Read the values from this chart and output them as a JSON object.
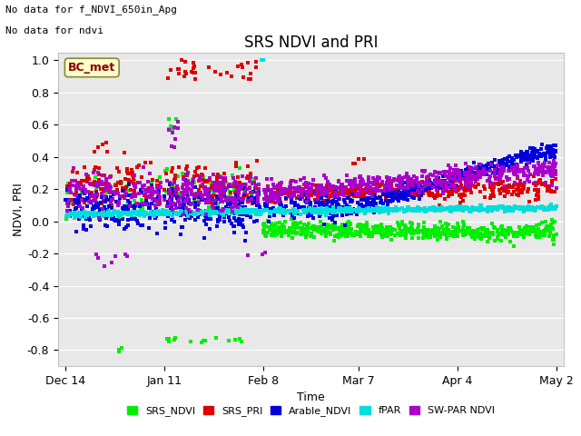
{
  "title": "SRS NDVI and PRI",
  "xlabel": "Time",
  "ylabel": "NDVI, PRI",
  "note_line1": "No data for f_NDVI_650in_Apg",
  "note_line2": "No data for ndvi",
  "bc_met_label": "BC_met",
  "legend_entries": [
    "SRS_NDVI",
    "SRS_PRI",
    "Arable_NDVI",
    "fPAR",
    "SW-PAR NDVI"
  ],
  "legend_colors": [
    "#00ee00",
    "#dd0000",
    "#0000dd",
    "#00dddd",
    "#aa00cc"
  ],
  "xtick_labels": [
    "Dec 14",
    "Jan 11",
    "Feb 8",
    "Mar 7",
    "Apr 4",
    "May 2"
  ],
  "xtick_positions": [
    0,
    28,
    56,
    83,
    111,
    139
  ],
  "ylim": [
    -0.9,
    1.05
  ],
  "yticks": [
    -0.8,
    -0.6,
    -0.4,
    -0.2,
    0.0,
    0.2,
    0.4,
    0.6,
    0.8,
    1.0
  ],
  "plot_bg_color": "#e8e8e8",
  "fig_bg_color": "#ffffff",
  "title_fontsize": 12,
  "axis_fontsize": 9,
  "tick_fontsize": 9,
  "marker_size": 3
}
